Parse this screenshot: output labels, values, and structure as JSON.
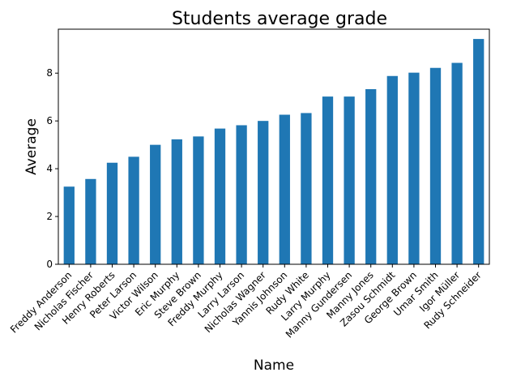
{
  "chart_data": {
    "type": "bar",
    "title": "Students average grade",
    "xlabel": "Name",
    "ylabel": "Average",
    "categories": [
      "Freddy Anderson",
      "Nicholas Fischer",
      "Henry Roberts",
      "Peter Larson",
      "Victor Wilson",
      "Eric Murphy",
      "Steve Brown",
      "Freddy Murphy",
      "Larry Larson",
      "Nicholas Wagner",
      "Yannis Johnson",
      "Rudy White",
      "Larry Murphy",
      "Manny Gundersen",
      "Manny Jones",
      "Zasou Schmidt",
      "George Brown",
      "Umar Smith",
      "Igor Müller",
      "Rudy Schneider"
    ],
    "values": [
      3.25,
      3.57,
      4.25,
      4.5,
      5.0,
      5.23,
      5.35,
      5.68,
      5.82,
      6.0,
      6.26,
      6.33,
      7.02,
      7.02,
      7.33,
      7.88,
      8.02,
      8.22,
      8.43,
      9.43
    ],
    "ylim": [
      0,
      9.84
    ],
    "yticks": [
      0,
      2,
      4,
      6,
      8
    ],
    "grid": false,
    "colors": {
      "bar": "#1f77b4"
    }
  }
}
